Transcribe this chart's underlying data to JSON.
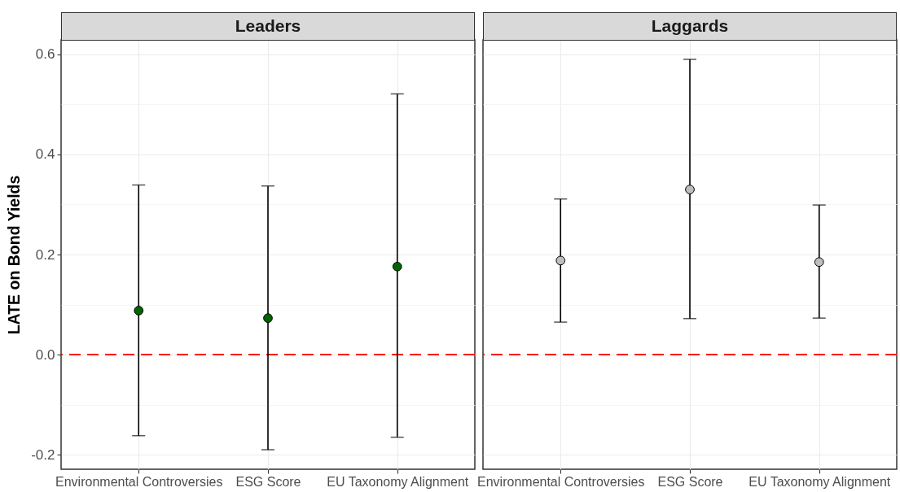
{
  "chart_data": [
    {
      "type": "scatter",
      "title": "Leaders",
      "ylabel": "LATE on Bond Yields",
      "categories": [
        "Environmental Controversies",
        "ESG Score",
        "EU Taxonomy Alignment"
      ],
      "series": [
        {
          "color": "#006400",
          "values": [
            0.088,
            0.073,
            0.176
          ],
          "errors": [
            [
              -0.162,
              0.339
            ],
            [
              -0.19,
              0.337
            ],
            [
              -0.165,
              0.521
            ]
          ]
        }
      ],
      "ylim": [
        -0.229,
        0.629
      ],
      "yticks": [
        -0.2,
        {
          "value": 0,
          "label": "0.0"
        },
        0.2,
        0.4,
        0.6
      ],
      "grid": true,
      "marker": "circle",
      "ref_lines": [
        {
          "axis": "y",
          "value": 0,
          "color": "#ff0000",
          "line_style": "dashed"
        }
      ]
    },
    {
      "type": "scatter",
      "title": "Laggards",
      "categories": [
        "Environmental Controversies",
        "ESG Score",
        "EU Taxonomy Alignment"
      ],
      "series": [
        {
          "color": "#bebebe",
          "values": [
            0.188,
            0.33,
            0.185
          ],
          "errors": [
            [
              0.065,
              0.311
            ],
            [
              0.072,
              0.59
            ],
            [
              0.073,
              0.299
            ]
          ]
        }
      ],
      "ylim": [
        -0.229,
        0.629
      ],
      "yticks": [
        -0.2,
        0,
        0.2,
        0.4,
        0.6
      ],
      "grid": true,
      "marker": "circle",
      "tick_labels": "x",
      "ref_lines": [
        {
          "axis": "y",
          "value": 0,
          "color": "#ff0000",
          "line_style": "dashed"
        }
      ]
    }
  ]
}
